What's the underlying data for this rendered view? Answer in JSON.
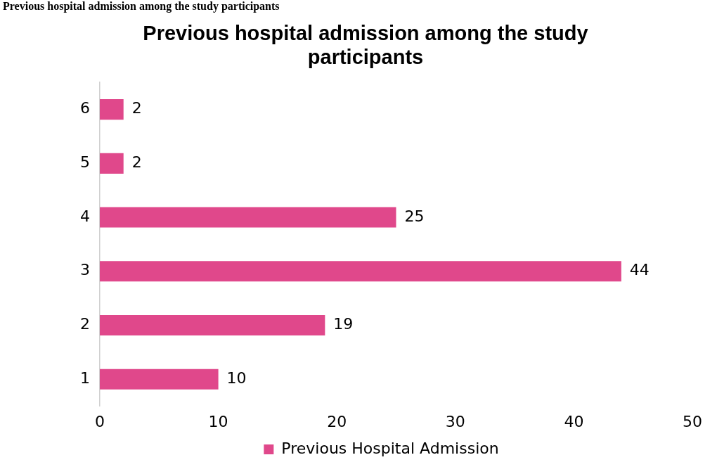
{
  "chart_data": {
    "type": "bar",
    "orientation": "horizontal",
    "title": "Previous hospital admission among the study participants",
    "annotations": [
      "Previous hospital admission among the study participants"
    ],
    "categories": [
      "6",
      "5",
      "4",
      "3",
      "2",
      "1"
    ],
    "series": [
      {
        "name": "Previous Hospital Admission",
        "color": "#e0488b",
        "values": [
          2,
          2,
          25,
          44,
          19,
          10
        ]
      }
    ],
    "xlim": [
      0,
      50
    ],
    "xticks": [
      0,
      10,
      20,
      30,
      40,
      50
    ],
    "grid": false,
    "legend": "bottom",
    "data_labels": true
  }
}
